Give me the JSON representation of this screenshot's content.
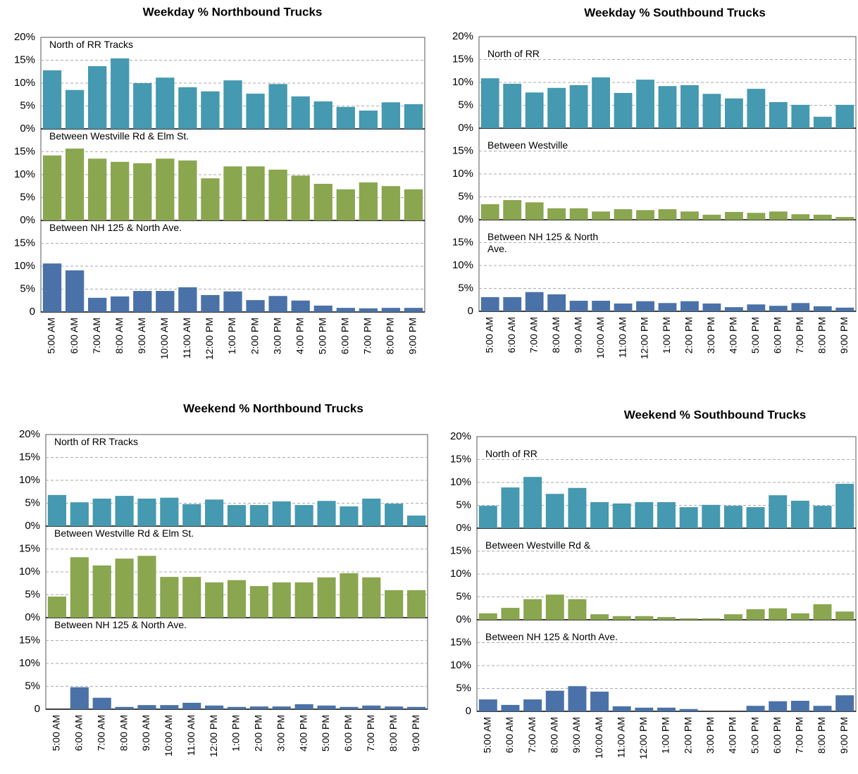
{
  "chart_data": [
    {
      "type": "bar",
      "title": "Weekday % Northbound Trucks",
      "categories": [
        "5:00 AM",
        "6:00 AM",
        "7:00 AM",
        "8:00 AM",
        "9:00 AM",
        "10:00 AM",
        "11:00 AM",
        "12:00 PM",
        "1:00 PM",
        "2:00 PM",
        "3:00 PM",
        "4:00 PM",
        "5:00 PM",
        "6:00 PM",
        "7:00 PM",
        "8:00 PM",
        "9:00 PM"
      ],
      "panels": [
        {
          "label": "North of RR Tracks",
          "color": "#4599b0",
          "ylim": [
            0,
            20
          ],
          "yticks": [
            {
              "value": 20,
              "label": "20%"
            },
            {
              "value": 15,
              "label": "15%"
            },
            {
              "value": 10,
              "label": "10%"
            },
            {
              "value": 5,
              "label": "5%"
            },
            {
              "value": 0,
              "label": "0%"
            }
          ],
          "values": [
            12.8,
            8.5,
            13.7,
            15.4,
            10,
            11.2,
            9.1,
            8.2,
            10.6,
            7.7,
            9.8,
            7.1,
            6,
            4.8,
            4,
            5.8,
            5.4
          ]
        },
        {
          "label": "Between Westville Rd & Elm St.",
          "color": "#8aa64f",
          "ylim": [
            0,
            20
          ],
          "yticks": [
            {
              "value": 15,
              "label": "15%"
            },
            {
              "value": 10,
              "label": "10%"
            },
            {
              "value": 5,
              "label": "5%"
            },
            {
              "value": 0,
              "label": "0%"
            }
          ],
          "values": [
            14.2,
            15.7,
            13.5,
            12.8,
            12.5,
            13.5,
            13.1,
            9.2,
            11.8,
            11.8,
            11.1,
            9.8,
            8,
            6.8,
            8.3,
            7.5,
            6.8
          ]
        },
        {
          "label": "Between NH 125 & North Ave.",
          "color": "#4a72a8",
          "ylim": [
            0,
            20
          ],
          "yticks": [
            {
              "value": 15,
              "label": "15%"
            },
            {
              "value": 10,
              "label": "10%"
            },
            {
              "value": 5,
              "label": "5%"
            },
            0
          ],
          "values": [
            10.6,
            9.1,
            3.1,
            3.4,
            4.6,
            4.6,
            5.4,
            3.7,
            4.5,
            2.6,
            3.5,
            2.5,
            1.4,
            0.9,
            0.8,
            0.9,
            0.9
          ]
        }
      ]
    },
    {
      "type": "bar",
      "title": "Weekday % Southbound Trucks",
      "categories": [
        "5:00 AM",
        "6:00 AM",
        "7:00 AM",
        "8:00 AM",
        "9:00 AM",
        "10:00 AM",
        "11:00 AM",
        "12:00 PM",
        "1:00 PM",
        "2:00 PM",
        "3:00 PM",
        "4:00 PM",
        "5:00 PM",
        "6:00 PM",
        "7:00 PM",
        "8:00 PM",
        "9:00 PM"
      ],
      "panels": [
        {
          "label": "North of RR",
          "color": "#4599b0",
          "ylim": [
            0,
            20
          ],
          "yticks": [
            {
              "value": 20,
              "label": "20%"
            },
            {
              "value": 15,
              "label": "15%"
            },
            {
              "value": 10,
              "label": "10%"
            },
            {
              "value": 5,
              "label": "5%"
            },
            {
              "value": 0,
              "label": "0%"
            }
          ],
          "values": [
            10.9,
            9.7,
            7.8,
            8.8,
            9.4,
            11.1,
            7.7,
            10.6,
            9.2,
            9.4,
            7.5,
            6.5,
            8.6,
            5.7,
            5.1,
            2.5,
            5.1
          ]
        },
        {
          "label": "Between Westville",
          "color": "#8aa64f",
          "ylim": [
            0,
            20
          ],
          "yticks": [
            {
              "value": 15,
              "label": "15%"
            },
            {
              "value": 10,
              "label": "10%"
            },
            {
              "value": 5,
              "label": "5%"
            },
            {
              "value": 0,
              "label": "0%"
            }
          ],
          "values": [
            3.4,
            4.3,
            3.8,
            2.5,
            2.5,
            1.8,
            2.3,
            2.1,
            2.3,
            1.8,
            1.1,
            1.7,
            1.5,
            1.8,
            1.2,
            1.1,
            0.6
          ]
        },
        {
          "label": "Between NH 125 & North Ave.",
          "color": "#4a72a8",
          "ylim": [
            0,
            20
          ],
          "yticks": [
            {
              "value": 15,
              "label": "15%"
            },
            {
              "value": 10,
              "label": "10%"
            },
            {
              "value": 5,
              "label": "5%"
            },
            0
          ],
          "values": [
            3.1,
            3.1,
            4.2,
            3.7,
            2.3,
            2.3,
            1.7,
            2.2,
            1.8,
            2.2,
            1.7,
            0.9,
            1.5,
            1.2,
            1.8,
            1.1,
            0.8
          ]
        }
      ]
    },
    {
      "type": "bar",
      "title": "Weekend % Northbound Trucks",
      "categories": [
        "5:00 AM",
        "6:00 AM",
        "7:00 AM",
        "8:00 AM",
        "9:00 AM",
        "10:00 AM",
        "11:00 AM",
        "12:00 PM",
        "1:00 PM",
        "2:00 PM",
        "3:00 PM",
        "4:00 PM",
        "5:00 PM",
        "6:00 PM",
        "7:00 PM",
        "8:00 PM",
        "9:00 PM"
      ],
      "panels": [
        {
          "label": "North of RR Tracks",
          "color": "#4599b0",
          "ylim": [
            0,
            20
          ],
          "yticks": [
            {
              "value": 20,
              "label": "20%"
            },
            {
              "value": 15,
              "label": "15%"
            },
            {
              "value": 10,
              "label": "10%"
            },
            {
              "value": 5,
              "label": "5%"
            },
            {
              "value": 0,
              "label": "0%"
            }
          ],
          "values": [
            6.8,
            5.2,
            6,
            6.6,
            6,
            6.2,
            4.8,
            5.8,
            4.6,
            4.6,
            5.4,
            4.6,
            5.5,
            4.3,
            6,
            4.9,
            2.3
          ]
        },
        {
          "label": "Between Westville Rd & Elm St.",
          "color": "#8aa64f",
          "ylim": [
            0,
            20
          ],
          "yticks": [
            {
              "value": 15,
              "label": "15%"
            },
            {
              "value": 10,
              "label": "10%"
            },
            {
              "value": 5,
              "label": "5%"
            },
            {
              "value": 0,
              "label": "0%"
            }
          ],
          "values": [
            4.6,
            13.2,
            11.4,
            12.9,
            13.5,
            8.9,
            8.9,
            7.7,
            8.2,
            6.9,
            7.7,
            7.7,
            8.8,
            9.7,
            8.8,
            6,
            6
          ]
        },
        {
          "label": "Between NH 125 & North Ave.",
          "color": "#4a72a8",
          "ylim": [
            0,
            20
          ],
          "yticks": [
            {
              "value": 15,
              "label": "15%"
            },
            {
              "value": 10,
              "label": "10%"
            },
            {
              "value": 5,
              "label": "5%"
            },
            0
          ],
          "values": [
            0,
            4.8,
            2.5,
            0.5,
            0.9,
            0.9,
            1.4,
            0.8,
            0.5,
            0.6,
            0.6,
            1.1,
            0.8,
            0.5,
            0.8,
            0.6,
            0.5
          ]
        }
      ]
    },
    {
      "type": "bar",
      "title": "Weekend % Southbound Trucks",
      "categories": [
        "5:00 AM",
        "6:00 AM",
        "7:00 AM",
        "8:00 AM",
        "9:00 AM",
        "10:00 AM",
        "11:00 AM",
        "12:00 PM",
        "1:00 PM",
        "2:00 PM",
        "3:00 PM",
        "4:00 PM",
        "5:00 PM",
        "6:00 PM",
        "7:00 PM",
        "8:00 PM",
        "9:00 PM"
      ],
      "panels": [
        {
          "label": "North of RR",
          "color": "#4599b0",
          "ylim": [
            0,
            20
          ],
          "yticks": [
            {
              "value": 20,
              "label": "20%"
            },
            {
              "value": 15,
              "label": "15%"
            },
            {
              "value": 10,
              "label": "10%"
            },
            {
              "value": 5,
              "label": "5%"
            },
            {
              "value": 0,
              "label": "0%"
            }
          ],
          "values": [
            4.9,
            8.9,
            11.2,
            7.5,
            8.8,
            5.7,
            5.4,
            5.7,
            5.7,
            4.6,
            5.1,
            4.9,
            4.6,
            7.2,
            6,
            4.9,
            9.7
          ]
        },
        {
          "label": "Between Westville Rd &",
          "color": "#8aa64f",
          "ylim": [
            0,
            20
          ],
          "yticks": [
            {
              "value": 15,
              "label": "15%"
            },
            {
              "value": 10,
              "label": "10%"
            },
            {
              "value": 5,
              "label": "5%"
            },
            {
              "value": 0,
              "label": "0%"
            }
          ],
          "values": [
            1.4,
            2.6,
            4.5,
            5.5,
            4.5,
            1.2,
            0.8,
            0.8,
            0.6,
            0.3,
            0.3,
            1.2,
            2.3,
            2.5,
            1.4,
            3.4,
            1.8
          ]
        },
        {
          "label": "Between NH 125 & North Ave.",
          "color": "#4a72a8",
          "ylim": [
            0,
            20
          ],
          "yticks": [
            {
              "value": 15,
              "label": "15%"
            },
            {
              "value": 10,
              "label": "10%"
            },
            {
              "value": 5,
              "label": "5%"
            },
            0
          ],
          "values": [
            2.6,
            1.4,
            2.6,
            4.5,
            5.5,
            4.3,
            1.1,
            0.8,
            0.8,
            0.5,
            0,
            0,
            1.2,
            2.2,
            2.3,
            1.2,
            3.5
          ]
        }
      ]
    }
  ]
}
